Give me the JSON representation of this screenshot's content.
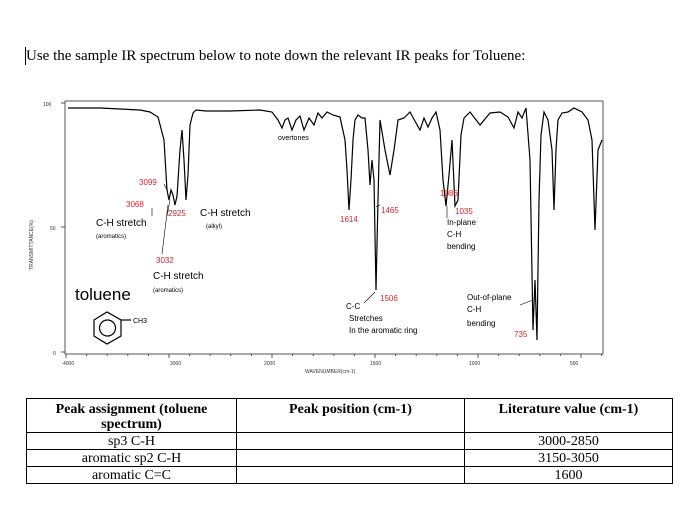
{
  "instruction": "Use the sample IR spectrum below to note down the relevant IR peaks for Toluene:",
  "figure": {
    "y_tick_top": "100",
    "y_tick_mid": "50",
    "y_tick_bottom": "0",
    "y_axis_label": "TRANSMITTANCE(%)",
    "x_ticks": [
      "4000",
      "3000",
      "2000",
      "1500",
      "1000",
      "500"
    ],
    "x_axis_label": "WAVENUMBER(cm-1)",
    "molecule_name": "toluene",
    "molecule_group": "CH3",
    "annotations": {
      "overtones": "overtones",
      "p3099": "3099",
      "p3068": "3068",
      "p2925": "2925",
      "ch_stretch_alkyl": "C-H stretch",
      "alkyl": "(alkyl)",
      "ch_stretch_arom_left": "C-H stretch",
      "aromatics_left": "(aromatics)",
      "p3032": "3032",
      "ch_stretch_arom_mid": "C-H stretch",
      "aromatics_mid": "(aromatics)",
      "p1614": "1614",
      "p1465": "1465",
      "p1506": "1506",
      "cc_1": "C-C",
      "cc_2": "Stretches",
      "cc_3": "In the aromatic ring",
      "p1086": "1086",
      "p1035": "1035",
      "inplane_1": "In-plane",
      "inplane_2": "C-H",
      "inplane_3": "bending",
      "oop_1": "Out-of-plane",
      "oop_2": "C-H",
      "oop_3": "bending",
      "p735": "735"
    },
    "colors": {
      "peak_number": "#d9232d",
      "spectrum": "#000000"
    }
  },
  "table": {
    "headers": [
      "Peak assignment (toluene spectrum)",
      "Peak position (cm-1)",
      "Literature value (cm-1)"
    ],
    "rows": [
      {
        "assignment": "sp3 C-H",
        "position": "",
        "literature": "3000-2850"
      },
      {
        "assignment": "aromatic sp2 C-H",
        "position": "",
        "literature": "3150-3050"
      },
      {
        "assignment": "aromatic C=C",
        "position": "",
        "literature": "1600"
      }
    ]
  }
}
